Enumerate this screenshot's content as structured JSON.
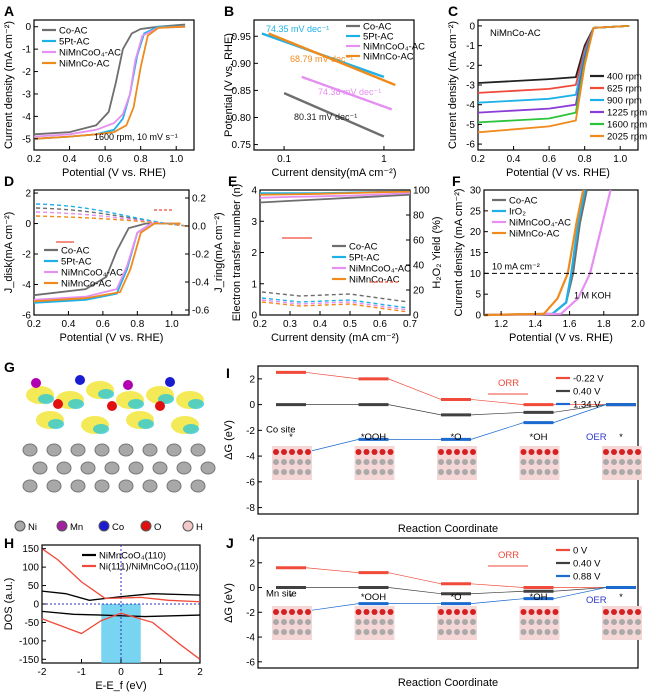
{
  "panels": {
    "A": {
      "letter": "A",
      "xlabel": "Potential (V vs. RHE)",
      "ylabel": "Current density (mA cm⁻²)",
      "note": "1600 rpm, 10 mV s⁻¹",
      "xticks": [
        "0.2",
        "0.4",
        "0.6",
        "0.8",
        "1.0"
      ],
      "yticks": [
        "0",
        "-1",
        "-2",
        "-3",
        "-4",
        "-5"
      ],
      "legend": [
        "Co-AC",
        "5Pt-AC",
        "NiMnCoO₄-AC",
        "NiMnCo-AC"
      ]
    },
    "B": {
      "letter": "B",
      "xlabel": "Current density(mA cm⁻²)",
      "ylabel": "Potential (V vs. RHE)",
      "xticks": [
        "0.1",
        "1"
      ],
      "yticks": [
        "0.95",
        "0.90",
        "0.85",
        "0.80",
        "0.75"
      ],
      "legend": [
        "Co-AC",
        "5Pt-AC",
        "NiMnCoO₄-AC",
        "NiMnCo-AC"
      ],
      "slopes": [
        "74.35 mV dec⁻¹",
        "68.79 mV dec⁻¹",
        "74.38 mV dec⁻¹",
        "80.31 mV dec⁻¹"
      ]
    },
    "C": {
      "letter": "C",
      "xlabel": "Potential (V vs. RHE)",
      "ylabel": "Current density (mA cm⁻²)",
      "title": "NiMnCo-AC",
      "xticks": [
        "0.2",
        "0.4",
        "0.6",
        "0.8",
        "1.0"
      ],
      "yticks": [
        "0",
        "-1",
        "-2",
        "-3",
        "-4",
        "-5",
        "-6"
      ],
      "legend": [
        "400 rpm",
        "625 rpm",
        "900 rpm",
        "1225 rpm",
        "1600 rpm",
        "2025 rpm"
      ]
    },
    "D": {
      "letter": "D",
      "xlabel": "Potential (V vs. RHE)",
      "ylabel": "J_disk(mA cm⁻²)",
      "ylabel2": "J_ring(mA cm⁻²)",
      "xticks": [
        "0.2",
        "0.4",
        "0.6",
        "0.8",
        "1.0"
      ],
      "yticks": [
        "2",
        "0",
        "-2",
        "-4",
        "-6"
      ],
      "y2ticks": [
        "0.2",
        "0.0",
        "-0.2",
        "-0.4",
        "-0.6"
      ],
      "legend": [
        "Co-AC",
        "5Pt-AC",
        "NiMnCoO₄-AC",
        "NiMnCo-AC"
      ]
    },
    "E": {
      "letter": "E",
      "xlabel": "Current density (mA cm⁻²)",
      "ylabel": "Electron transfer number (n)",
      "ylabel2": "H₂O₂ Yield (%)",
      "xticks": [
        "0.2",
        "0.3",
        "0.4",
        "0.5",
        "0.6",
        "0.7"
      ],
      "yticks": [
        "4",
        "3",
        "2",
        "1",
        "0"
      ],
      "y2ticks": [
        "100",
        "80",
        "60",
        "40",
        "20",
        "0"
      ],
      "legend": [
        "Co-AC",
        "5Pt-AC",
        "NiMnCoO₄-AC",
        "NiMnCo-AC"
      ]
    },
    "F": {
      "letter": "F",
      "xlabel": "Potential (V vs. RHE)",
      "ylabel": "Current density (mA cm⁻²)",
      "xticks": [
        "1.2",
        "1.4",
        "1.6",
        "1.8",
        "2.0"
      ],
      "yticks": [
        "30",
        "25",
        "20",
        "15",
        "10",
        "5",
        "0"
      ],
      "legend": [
        "Co-AC",
        "IrO₂",
        "NiMnCoO₄-AC",
        "NiMnCo-AC"
      ],
      "ref": "10 mA cm⁻²",
      "electrolyte": "1 M KOH"
    },
    "G": {
      "letter": "G",
      "legend": [
        "Ni",
        "Mn",
        "Co",
        "O",
        "H"
      ]
    },
    "H": {
      "letter": "H",
      "xlabel": "E-E_f (eV)",
      "ylabel": "DOS (a.u.)",
      "xticks": [
        "-2",
        "-1",
        "0",
        "1",
        "2"
      ],
      "yticks": [
        "150",
        "100",
        "50",
        "0",
        "-50",
        "-100",
        "-150"
      ],
      "legend": [
        "NiMnCoO₄(110)",
        "Ni(111)/NiMnCoO₄(110)"
      ]
    },
    "I": {
      "letter": "I",
      "xlabel": "Reaction Coordinate",
      "ylabel": "ΔG (eV)",
      "site": "Co site",
      "states": [
        "*",
        "*OOH",
        "*O",
        "*OH",
        "*"
      ],
      "yticks": [
        "2",
        "0",
        "-2",
        "-4",
        "-6",
        "-8"
      ],
      "legend": [
        "-0.22 V",
        "0.40 V",
        "1.34 V"
      ],
      "orr": "ORR",
      "oer": "OER"
    },
    "J": {
      "letter": "J",
      "xlabel": "Reaction Coordinate",
      "ylabel": "ΔG (eV)",
      "site": "Mn site",
      "states": [
        "*",
        "*OOH",
        "*O",
        "*OH",
        "*"
      ],
      "yticks": [
        "4",
        "2",
        "0",
        "-2",
        "-4",
        "-6"
      ],
      "legend": [
        "0 V",
        "0.40 V",
        "0.88 V"
      ],
      "orr": "ORR",
      "oer": "OER"
    }
  },
  "colors": {
    "gray": "#6e6e6e",
    "blue": "#1eb1e7",
    "pink": "#e58ff0",
    "orange": "#f08a1c",
    "red": "#f04a3a",
    "green": "#2bc33b",
    "purple": "#8b3bd6",
    "black": "#222222"
  },
  "chart_data": [
    {
      "type": "line",
      "panel": "A",
      "xlim": [
        0.2,
        1.1
      ],
      "ylim": [
        -5.5,
        0.3
      ],
      "series": [
        {
          "name": "Co-AC",
          "x": [
            0.2,
            0.4,
            0.55,
            0.62,
            0.66,
            0.7,
            0.75,
            0.8,
            0.9,
            1.05
          ],
          "y": [
            -4.8,
            -4.7,
            -4.4,
            -3.8,
            -2.5,
            -1.0,
            -0.3,
            -0.1,
            0,
            0.1
          ]
        },
        {
          "name": "5Pt-AC",
          "x": [
            0.2,
            0.4,
            0.55,
            0.65,
            0.7,
            0.74,
            0.78,
            0.82,
            0.9,
            1.05
          ],
          "y": [
            -5.0,
            -4.9,
            -4.8,
            -4.6,
            -4.1,
            -3.0,
            -1.3,
            -0.3,
            0,
            0
          ]
        },
        {
          "name": "NiMnCoO₄-AC",
          "x": [
            0.2,
            0.4,
            0.55,
            0.65,
            0.7,
            0.74,
            0.77,
            0.81,
            0.9,
            1.05
          ],
          "y": [
            -4.9,
            -4.8,
            -4.6,
            -4.3,
            -3.9,
            -3.0,
            -1.5,
            -0.4,
            -0.05,
            0
          ]
        },
        {
          "name": "NiMnCo-AC",
          "x": [
            0.2,
            0.4,
            0.55,
            0.65,
            0.72,
            0.76,
            0.8,
            0.84,
            0.9,
            1.05
          ],
          "y": [
            -5.0,
            -4.9,
            -4.8,
            -4.7,
            -4.4,
            -3.6,
            -1.8,
            -0.4,
            -0.05,
            0
          ]
        }
      ]
    },
    {
      "type": "line",
      "panel": "B",
      "xscale": "log",
      "xlim": [
        0.05,
        2
      ],
      "ylim": [
        0.74,
        0.98
      ],
      "series": [
        {
          "name": "Co-AC",
          "x": [
            0.1,
            1
          ],
          "y": [
            0.845,
            0.765
          ]
        },
        {
          "name": "5Pt-AC",
          "x": [
            0.06,
            1
          ],
          "y": [
            0.955,
            0.875
          ]
        },
        {
          "name": "NiMnCoO₄-AC",
          "x": [
            0.15,
            1.2
          ],
          "y": [
            0.875,
            0.815
          ]
        },
        {
          "name": "NiMnCo-AC",
          "x": [
            0.07,
            1.3
          ],
          "y": [
            0.955,
            0.86
          ]
        }
      ]
    },
    {
      "type": "line",
      "panel": "C",
      "xlim": [
        0.2,
        1.1
      ],
      "ylim": [
        -6.3,
        0.3
      ],
      "series": [
        {
          "name": "400 rpm",
          "x": [
            0.2,
            0.6,
            0.75,
            0.8,
            0.85,
            1.05
          ],
          "y": [
            -2.9,
            -2.7,
            -2.6,
            -1.0,
            -0.1,
            0
          ]
        },
        {
          "name": "625 rpm",
          "x": [
            0.2,
            0.6,
            0.75,
            0.8,
            0.85,
            1.05
          ],
          "y": [
            -3.4,
            -3.2,
            -3.0,
            -1.2,
            -0.1,
            0
          ]
        },
        {
          "name": "900 rpm",
          "x": [
            0.2,
            0.6,
            0.75,
            0.8,
            0.85,
            1.05
          ],
          "y": [
            -3.9,
            -3.7,
            -3.5,
            -1.4,
            -0.1,
            0
          ]
        },
        {
          "name": "1225 rpm",
          "x": [
            0.2,
            0.6,
            0.75,
            0.8,
            0.85,
            1.05
          ],
          "y": [
            -4.4,
            -4.2,
            -4.0,
            -1.6,
            -0.1,
            0
          ]
        },
        {
          "name": "1600 rpm",
          "x": [
            0.2,
            0.6,
            0.75,
            0.8,
            0.85,
            1.05
          ],
          "y": [
            -4.9,
            -4.7,
            -4.4,
            -1.8,
            -0.1,
            0
          ]
        },
        {
          "name": "2025 rpm",
          "x": [
            0.2,
            0.6,
            0.75,
            0.8,
            0.85,
            1.05
          ],
          "y": [
            -5.4,
            -5.1,
            -4.8,
            -2.0,
            -0.1,
            0
          ]
        }
      ]
    },
    {
      "type": "line",
      "panel": "D",
      "xlim": [
        0.2,
        1.1
      ],
      "ylim": [
        -6,
        2.2
      ],
      "series": [
        {
          "name": "Co-AC",
          "x": [
            0.2,
            0.5,
            0.62,
            0.68,
            0.75,
            0.85,
            1.05
          ],
          "y": [
            -4.7,
            -4.3,
            -3.5,
            -1.8,
            -0.3,
            0,
            0
          ]
        },
        {
          "name": "5Pt-AC",
          "x": [
            0.2,
            0.5,
            0.68,
            0.74,
            0.8,
            0.88,
            1.05
          ],
          "y": [
            -5.2,
            -5.0,
            -4.6,
            -3.0,
            -0.6,
            0,
            0
          ]
        },
        {
          "name": "NiMnCoO₄-AC",
          "x": [
            0.2,
            0.5,
            0.68,
            0.74,
            0.8,
            0.88,
            1.05
          ],
          "y": [
            -5.0,
            -4.8,
            -4.3,
            -2.8,
            -0.6,
            0,
            0
          ]
        },
        {
          "name": "NiMnCo-AC",
          "x": [
            0.2,
            0.5,
            0.7,
            0.76,
            0.82,
            0.9,
            1.05
          ],
          "y": [
            -5.1,
            -4.9,
            -4.5,
            -3.0,
            -0.6,
            0,
            0
          ]
        }
      ]
    },
    {
      "type": "line",
      "panel": "E",
      "xlim": [
        0.2,
        0.7
      ],
      "ylim": [
        0,
        4
      ],
      "series": [
        {
          "name": "Co-AC",
          "x": [
            0.2,
            0.3,
            0.4,
            0.5,
            0.6,
            0.7
          ],
          "y": [
            3.6,
            3.65,
            3.7,
            3.75,
            3.8,
            3.85
          ]
        },
        {
          "name": "5Pt-AC",
          "x": [
            0.2,
            0.3,
            0.4,
            0.5,
            0.6,
            0.7
          ],
          "y": [
            3.9,
            3.9,
            3.9,
            3.92,
            3.94,
            3.95
          ]
        },
        {
          "name": "NiMnCoO₄-AC",
          "x": [
            0.2,
            0.3,
            0.4,
            0.5,
            0.6,
            0.7
          ],
          "y": [
            3.75,
            3.78,
            3.8,
            3.82,
            3.86,
            3.9
          ]
        },
        {
          "name": "NiMnCo-AC",
          "x": [
            0.2,
            0.3,
            0.4,
            0.5,
            0.6,
            0.7
          ],
          "y": [
            3.85,
            3.86,
            3.88,
            3.9,
            3.93,
            3.95
          ]
        }
      ]
    },
    {
      "type": "line",
      "panel": "F",
      "xlim": [
        1.1,
        2.0
      ],
      "ylim": [
        0,
        30
      ],
      "series": [
        {
          "name": "Co-AC",
          "x": [
            1.1,
            1.5,
            1.58,
            1.62,
            1.66,
            1.7
          ],
          "y": [
            0,
            0.3,
            3,
            10,
            22,
            30
          ]
        },
        {
          "name": "IrO₂",
          "x": [
            1.1,
            1.5,
            1.58,
            1.61,
            1.65,
            1.69
          ],
          "y": [
            0,
            0.3,
            3,
            10,
            22,
            30
          ]
        },
        {
          "name": "NiMnCoO₄-AC",
          "x": [
            1.1,
            1.55,
            1.65,
            1.72,
            1.78,
            1.84
          ],
          "y": [
            0,
            0.3,
            4,
            10,
            20,
            30
          ]
        },
        {
          "name": "NiMnCo-AC",
          "x": [
            1.1,
            1.45,
            1.53,
            1.59,
            1.64,
            1.68
          ],
          "y": [
            0,
            0.3,
            4,
            10,
            22,
            30
          ]
        }
      ]
    }
  ]
}
